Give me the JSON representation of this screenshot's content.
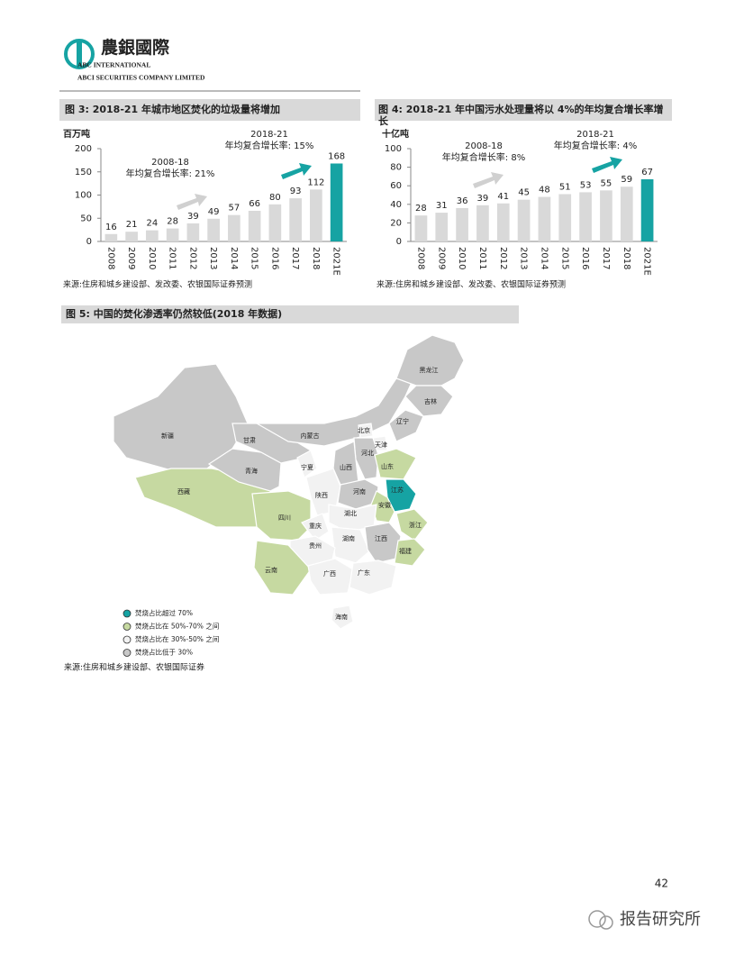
{
  "header": {
    "logo": "農銀國際",
    "line1": "ABC INTERNATIONAL",
    "line2": "ABCI SECURITIES COMPANY LIMITED"
  },
  "chart_data": [
    {
      "type": "bar",
      "title": "图 3:  2018-21 年城市地区焚化的垃圾量将增加",
      "y_label": "百万吨",
      "categories": [
        "2008",
        "2009",
        "2010",
        "2011",
        "2012",
        "2013",
        "2014",
        "2015",
        "2016",
        "2017",
        "2018",
        "2021E"
      ],
      "values": [
        16,
        21,
        24,
        28,
        39,
        49,
        57,
        66,
        80,
        93,
        112,
        168
      ],
      "colors": [
        "#d9d9d9",
        "#d9d9d9",
        "#d9d9d9",
        "#d9d9d9",
        "#d9d9d9",
        "#d9d9d9",
        "#d9d9d9",
        "#d9d9d9",
        "#d9d9d9",
        "#d9d9d9",
        "#d9d9d9",
        "#16a3a3"
      ],
      "ylim": [
        0,
        200
      ],
      "yticks": [
        0,
        50,
        100,
        150,
        200
      ],
      "annotations": [
        [
          "2008-18",
          "年均复合增长率: 21%"
        ],
        [
          "2018-21",
          "年均复合增长率: 15%"
        ]
      ],
      "source": "来源:住房和城乡建设部、发改委、农银国际证券预测"
    },
    {
      "type": "bar",
      "title": "图 4: 2018-21 年中国污水处理量将以 4%的年均复合增长率增长",
      "y_label": "十亿吨",
      "categories": [
        "2008",
        "2009",
        "2010",
        "2011",
        "2012",
        "2013",
        "2014",
        "2015",
        "2016",
        "2017",
        "2018",
        "2021E"
      ],
      "values": [
        28,
        31,
        36,
        39,
        41,
        45,
        48,
        51,
        53,
        55,
        59,
        67
      ],
      "colors": [
        "#d9d9d9",
        "#d9d9d9",
        "#d9d9d9",
        "#d9d9d9",
        "#d9d9d9",
        "#d9d9d9",
        "#d9d9d9",
        "#d9d9d9",
        "#d9d9d9",
        "#d9d9d9",
        "#d9d9d9",
        "#16a3a3"
      ],
      "ylim": [
        0,
        100
      ],
      "yticks": [
        0,
        20,
        40,
        60,
        80,
        100
      ],
      "annotations": [
        [
          "2008-18",
          "年均复合增长率: 8%"
        ],
        [
          "2018-21",
          "年均复合增长率: 4%"
        ]
      ],
      "source": "来源:住房和城乡建设部、发改委、农银国际证券预测"
    }
  ],
  "map": {
    "title": "图 5: 中国的焚化渗透率仍然较低(2018 年数据)",
    "legend": [
      {
        "label": "焚烧占比超过 70%",
        "color": "#16a3a3"
      },
      {
        "label": "焚烧占比在 50%-70% 之间",
        "color": "#c6d9a1"
      },
      {
        "label": "焚烧占比在 30%-50% 之间",
        "color": "#f2f2f2"
      },
      {
        "label": "焚烧占比低于 30%",
        "color": "#c8c8c8"
      }
    ],
    "provinces": [
      {
        "name": "新疆",
        "color": "#c8c8c8"
      },
      {
        "name": "西藏",
        "color": "#c6d9a1"
      },
      {
        "name": "青海",
        "color": "#c8c8c8"
      },
      {
        "name": "甘肃",
        "color": "#c8c8c8"
      },
      {
        "name": "内蒙古",
        "color": "#c8c8c8"
      },
      {
        "name": "黑龙江",
        "color": "#c8c8c8"
      },
      {
        "name": "吉林",
        "color": "#c8c8c8"
      },
      {
        "name": "辽宁",
        "color": "#c8c8c8"
      },
      {
        "name": "北京",
        "color": "#f2f2f2"
      },
      {
        "name": "天津",
        "color": "#f2f2f2"
      },
      {
        "name": "河北",
        "color": "#c8c8c8"
      },
      {
        "name": "山西",
        "color": "#c8c8c8"
      },
      {
        "name": "宁夏",
        "color": "#f2f2f2"
      },
      {
        "name": "山东",
        "color": "#c6d9a1"
      },
      {
        "name": "陕西",
        "color": "#f2f2f2"
      },
      {
        "name": "河南",
        "color": "#c8c8c8"
      },
      {
        "name": "江苏",
        "color": "#16a3a3"
      },
      {
        "name": "安徽",
        "color": "#c6d9a1"
      },
      {
        "name": "四川",
        "color": "#c6d9a1"
      },
      {
        "name": "重庆",
        "color": "#f2f2f2"
      },
      {
        "name": "湖北",
        "color": "#f2f2f2"
      },
      {
        "name": "浙江",
        "color": "#c6d9a1"
      },
      {
        "name": "湖南",
        "color": "#f2f2f2"
      },
      {
        "name": "江西",
        "color": "#c8c8c8"
      },
      {
        "name": "贵州",
        "color": "#f2f2f2"
      },
      {
        "name": "福建",
        "color": "#c6d9a1"
      },
      {
        "name": "云南",
        "color": "#c6d9a1"
      },
      {
        "name": "广西",
        "color": "#f2f2f2"
      },
      {
        "name": "广东",
        "color": "#f2f2f2"
      },
      {
        "name": "海南",
        "color": "#f2f2f2"
      }
    ],
    "source": "来源:住房和城乡建设部、农银国际证券"
  },
  "page_number": "42",
  "watermark": "报告研究所"
}
